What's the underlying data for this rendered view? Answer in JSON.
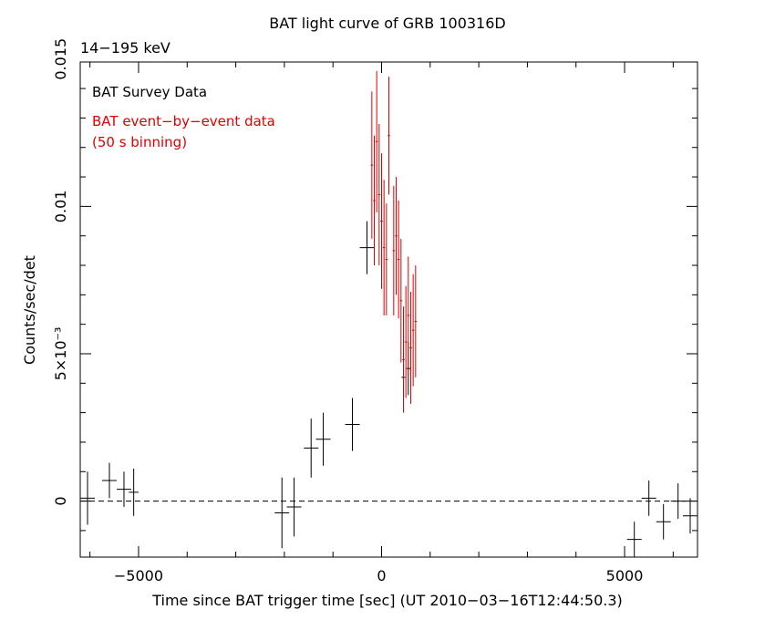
{
  "chart_data": {
    "type": "scatter",
    "title": "BAT light curve of GRB 100316D",
    "subtitle": "14−195 keV",
    "xlabel": "Time since BAT trigger time [sec] (UT 2010−03−16T12:44:50.3)",
    "ylabel": "Counts/sec/det",
    "xlim": [
      -6200,
      6500
    ],
    "ylim": [
      -0.0019,
      0.0149
    ],
    "x_ticks": [
      {
        "v": -5000,
        "label": "−5000"
      },
      {
        "v": 0,
        "label": "0"
      },
      {
        "v": 5000,
        "label": "5000"
      }
    ],
    "y_ticks": [
      {
        "v": 0,
        "label": "0"
      },
      {
        "v": 0.005,
        "label": "5×10⁻³"
      },
      {
        "v": 0.01,
        "label": "0.01"
      },
      {
        "v": 0.015,
        "label": "0.015"
      }
    ],
    "reference_line": {
      "y": 0,
      "style": "dashed"
    },
    "grid": false,
    "legend_position": "top-left",
    "series": [
      {
        "name": "BAT Survey Data",
        "color": "#000000",
        "points": [
          {
            "x": -6050,
            "xerr": 150,
            "y": 0.0001,
            "yerr": 0.0009
          },
          {
            "x": -5600,
            "xerr": 150,
            "y": 0.0007,
            "yerr": 0.0006
          },
          {
            "x": -5300,
            "xerr": 150,
            "y": 0.0004,
            "yerr": 0.0006
          },
          {
            "x": -5100,
            "xerr": 100,
            "y": 0.0003,
            "yerr": 0.0008
          },
          {
            "x": -2050,
            "xerr": 150,
            "y": -0.0004,
            "yerr": 0.0012
          },
          {
            "x": -1800,
            "xerr": 150,
            "y": -0.0002,
            "yerr": 0.001
          },
          {
            "x": -1450,
            "xerr": 150,
            "y": 0.0018,
            "yerr": 0.001
          },
          {
            "x": -1200,
            "xerr": 150,
            "y": 0.0021,
            "yerr": 0.0009
          },
          {
            "x": -600,
            "xerr": 150,
            "y": 0.0026,
            "yerr": 0.0009
          },
          {
            "x": -300,
            "xerr": 150,
            "y": 0.0086,
            "yerr": 0.0009
          },
          {
            "x": 450,
            "xerr": 40,
            "y": 0.0042,
            "yerr": 0.0009
          },
          {
            "x": 550,
            "xerr": 40,
            "y": 0.0045,
            "yerr": 0.0009
          },
          {
            "x": 5200,
            "xerr": 150,
            "y": -0.0013,
            "yerr": 0.0006
          },
          {
            "x": 5500,
            "xerr": 150,
            "y": 0.0001,
            "yerr": 0.0006
          },
          {
            "x": 5800,
            "xerr": 150,
            "y": -0.0007,
            "yerr": 0.0006
          },
          {
            "x": 6100,
            "xerr": 150,
            "y": 0.0,
            "yerr": 0.0006
          },
          {
            "x": 6350,
            "xerr": 150,
            "y": -0.0005,
            "yerr": 0.0006
          }
        ]
      },
      {
        "name": "BAT event−by−event data (50 s binning)",
        "color": "#e00000",
        "points": [
          {
            "x": -200,
            "xerr": 25,
            "y": 0.0114,
            "yerr": 0.0025
          },
          {
            "x": -150,
            "xerr": 25,
            "y": 0.0102,
            "yerr": 0.0022
          },
          {
            "x": -100,
            "xerr": 25,
            "y": 0.0122,
            "yerr": 0.0024
          },
          {
            "x": -50,
            "xerr": 25,
            "y": 0.0104,
            "yerr": 0.0024
          },
          {
            "x": 0,
            "xerr": 25,
            "y": 0.0095,
            "yerr": 0.0023
          },
          {
            "x": 50,
            "xerr": 25,
            "y": 0.0086,
            "yerr": 0.0023
          },
          {
            "x": 100,
            "xerr": 25,
            "y": 0.0082,
            "yerr": 0.0019
          },
          {
            "x": 150,
            "xerr": 25,
            "y": 0.0124,
            "yerr": 0.002
          },
          {
            "x": 250,
            "xerr": 25,
            "y": 0.0085,
            "yerr": 0.0022
          },
          {
            "x": 300,
            "xerr": 25,
            "y": 0.009,
            "yerr": 0.002
          },
          {
            "x": 350,
            "xerr": 25,
            "y": 0.0082,
            "yerr": 0.002
          },
          {
            "x": 400,
            "xerr": 25,
            "y": 0.0068,
            "yerr": 0.0021
          },
          {
            "x": 450,
            "xerr": 25,
            "y": 0.0048,
            "yerr": 0.0018
          },
          {
            "x": 500,
            "xerr": 25,
            "y": 0.0054,
            "yerr": 0.0019
          },
          {
            "x": 550,
            "xerr": 25,
            "y": 0.0063,
            "yerr": 0.002
          },
          {
            "x": 600,
            "xerr": 25,
            "y": 0.0052,
            "yerr": 0.0019
          },
          {
            "x": 650,
            "xerr": 25,
            "y": 0.0058,
            "yerr": 0.0019
          },
          {
            "x": 700,
            "xerr": 25,
            "y": 0.0061,
            "yerr": 0.0019
          }
        ]
      }
    ],
    "legend": {
      "survey_label": "BAT Survey Data",
      "event_label_line1": "BAT event−by−event data",
      "event_label_line2": "(50 s binning)"
    }
  }
}
